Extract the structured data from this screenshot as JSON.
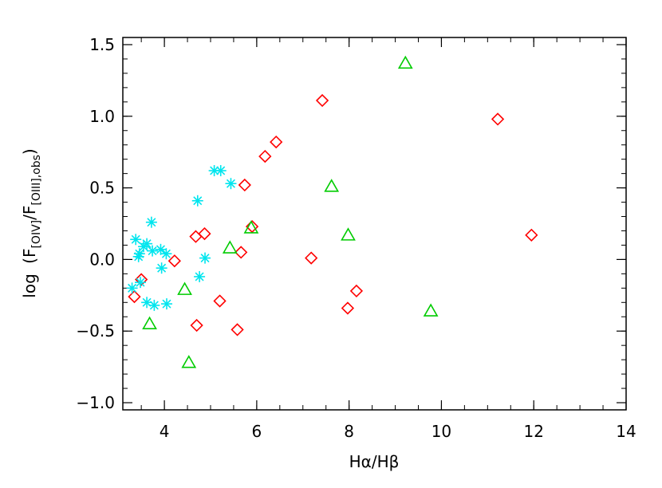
{
  "chart_data": {
    "type": "scatter",
    "title": "",
    "xlabel": "Hα/Hβ",
    "ylabel": {
      "prefix": "log",
      "open": "(",
      "f1": "F",
      "sub1": "[OIV]",
      "slash": "/",
      "f2": "F",
      "sub2": "[OIII],obs",
      "close": ")"
    },
    "xlim": [
      3.1,
      14
    ],
    "ylim": [
      -1.05,
      1.55
    ],
    "xticks": [
      4,
      6,
      8,
      10,
      12,
      14
    ],
    "xtick_labels": [
      "4",
      "6",
      "8",
      "10",
      "12",
      "14"
    ],
    "yticks": [
      -1.0,
      -0.5,
      0.0,
      0.5,
      1.0,
      1.5
    ],
    "ytick_labels": [
      "−1.0",
      "−0.5",
      "0.0",
      "0.5",
      "1.0",
      "1.5"
    ],
    "grid": false,
    "series": [
      {
        "marker": "diamond",
        "color": "#ff0000",
        "points": [
          [
            3.35,
            -0.26
          ],
          [
            3.5,
            -0.14
          ],
          [
            4.22,
            -0.01
          ],
          [
            4.68,
            0.16
          ],
          [
            4.87,
            0.18
          ],
          [
            4.7,
            -0.46
          ],
          [
            5.2,
            -0.29
          ],
          [
            5.58,
            -0.49
          ],
          [
            5.66,
            0.05
          ],
          [
            5.74,
            0.52
          ],
          [
            5.9,
            0.23
          ],
          [
            6.18,
            0.72
          ],
          [
            6.42,
            0.82
          ],
          [
            7.18,
            0.01
          ],
          [
            7.42,
            1.11
          ],
          [
            7.97,
            -0.34
          ],
          [
            8.16,
            -0.22
          ],
          [
            11.22,
            0.98
          ],
          [
            11.95,
            0.17
          ]
        ]
      },
      {
        "marker": "triangle",
        "color": "#00cc00",
        "points": [
          [
            3.68,
            -0.45
          ],
          [
            4.44,
            -0.21
          ],
          [
            4.53,
            -0.72
          ],
          [
            5.42,
            0.08
          ],
          [
            5.88,
            0.22
          ],
          [
            7.62,
            0.51
          ],
          [
            7.98,
            0.17
          ],
          [
            9.22,
            1.37
          ],
          [
            9.77,
            -0.36
          ]
        ]
      },
      {
        "marker": "asterisk",
        "color": "#00e5ee",
        "points": [
          [
            3.3,
            -0.2
          ],
          [
            3.38,
            0.14
          ],
          [
            3.44,
            0.02
          ],
          [
            3.46,
            0.04
          ],
          [
            3.48,
            -0.16
          ],
          [
            3.55,
            0.09
          ],
          [
            3.62,
            0.11
          ],
          [
            3.62,
            -0.3
          ],
          [
            3.72,
            0.26
          ],
          [
            3.74,
            0.06
          ],
          [
            3.78,
            -0.32
          ],
          [
            3.92,
            0.07
          ],
          [
            3.94,
            -0.06
          ],
          [
            4.04,
            0.04
          ],
          [
            4.05,
            -0.31
          ],
          [
            4.72,
            0.41
          ],
          [
            4.76,
            -0.12
          ],
          [
            4.88,
            0.01
          ],
          [
            5.08,
            0.62
          ],
          [
            5.22,
            0.62
          ],
          [
            5.44,
            0.53
          ]
        ]
      }
    ]
  }
}
